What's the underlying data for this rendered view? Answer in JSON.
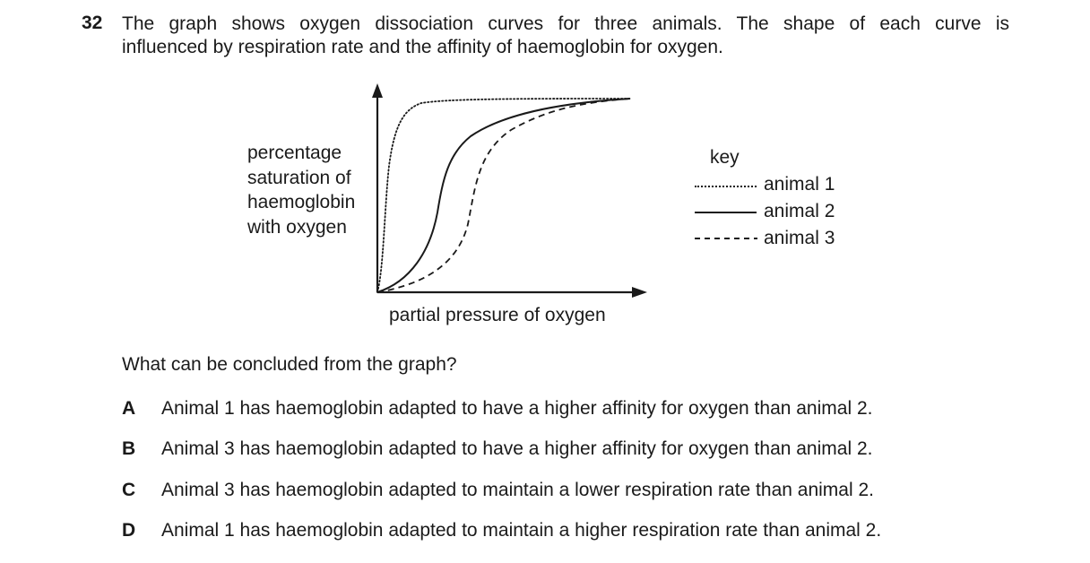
{
  "question": {
    "number": "32",
    "text_line1": "The graph shows oxygen dissociation curves for three animals. The shape of each curve is",
    "text_line2": "influenced by respiration rate and the affinity of haemoglobin for oxygen."
  },
  "graph": {
    "y_axis_label_lines": [
      "percentage",
      "saturation of",
      "haemoglobin",
      "with oxygen"
    ],
    "x_axis_label": "partial pressure of oxygen",
    "key": {
      "title": "key",
      "items": [
        {
          "label": "animal 1",
          "line_style": "dotted"
        },
        {
          "label": "animal 2",
          "line_style": "solid"
        },
        {
          "label": "animal 3",
          "line_style": "dashed"
        }
      ]
    }
  },
  "prompt": "What can be concluded from the graph?",
  "options": [
    {
      "letter": "A",
      "text": "Animal 1 has haemoglobin adapted to have a higher affinity for oxygen than animal 2."
    },
    {
      "letter": "B",
      "text": "Animal 3 has haemoglobin adapted to have a higher affinity for oxygen than animal 2."
    },
    {
      "letter": "C",
      "text": "Animal 3 has haemoglobin adapted to maintain a lower respiration rate than animal 2."
    },
    {
      "letter": "D",
      "text": "Animal 1 has haemoglobin adapted to maintain a higher respiration rate than animal 2."
    }
  ],
  "colors": {
    "text": "#1a1a1a",
    "background": "#ffffff"
  }
}
